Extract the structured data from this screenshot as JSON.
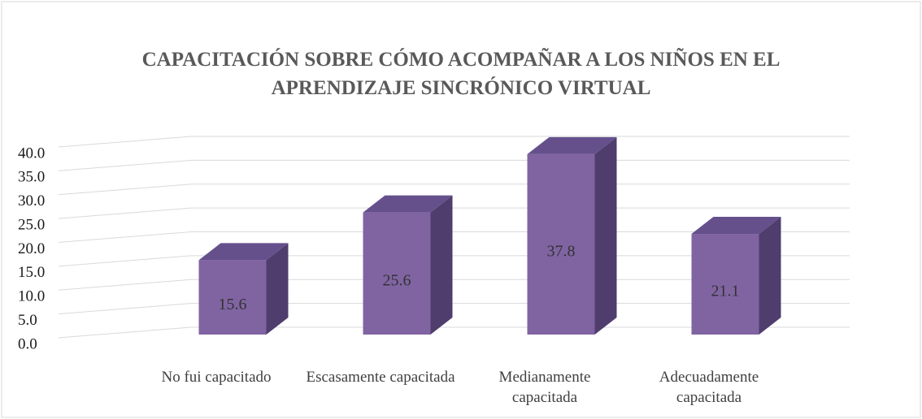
{
  "chart_data": {
    "type": "bar",
    "title": "CAPACITACIÓN SOBRE CÓMO ACOMPAÑAR A LOS NIÑOS EN EL APRENDIZAJE SINCRÓNICO VIRTUAL",
    "categories": [
      "No fui capacitado",
      "Escasamente capacitada",
      "Medianamente capacitada",
      "Adecuadamente capacitada"
    ],
    "values": [
      15.6,
      25.6,
      37.8,
      21.1
    ],
    "color": "#8064a2",
    "ylim": [
      0,
      40
    ],
    "yticks": [
      {
        "value": 0,
        "label": "0.0"
      },
      {
        "value": 5,
        "label": "5.0"
      },
      {
        "value": 10,
        "label": "10.0"
      },
      {
        "value": 15,
        "label": "15.0"
      },
      {
        "value": 20,
        "label": "20.0"
      },
      {
        "value": 25,
        "label": "25.0"
      },
      {
        "value": 30,
        "label": "30.0"
      },
      {
        "value": 35,
        "label": "35.0"
      },
      {
        "value": 40,
        "label": "40.0"
      }
    ],
    "grid": true
  }
}
